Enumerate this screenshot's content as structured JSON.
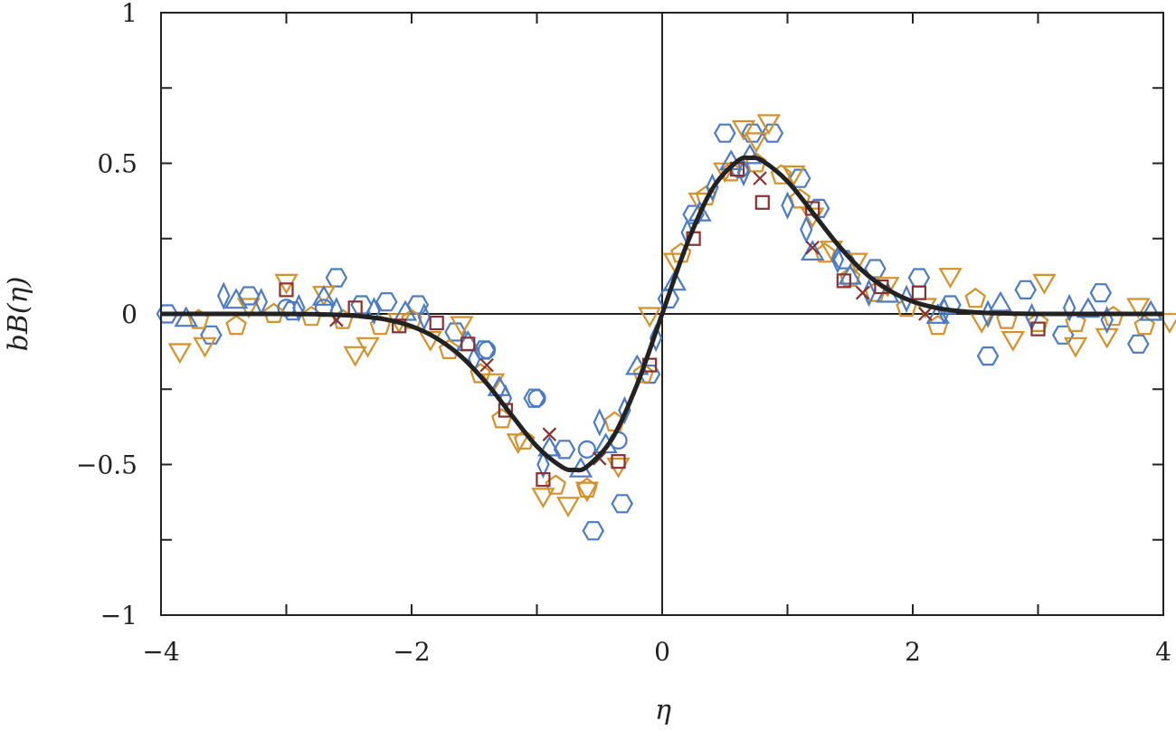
{
  "chart_data": {
    "type": "scatter",
    "title": "",
    "xlabel": "η",
    "ylabel": "bB(η)",
    "xlim": [
      -4,
      4
    ],
    "ylim": [
      -1,
      1
    ],
    "x_ticks": [
      -4,
      -3,
      -2,
      -1,
      0,
      1,
      2,
      3,
      4
    ],
    "x_tick_labels": [
      {
        "value": -4,
        "label": "−4"
      },
      {
        "value": -2,
        "label": "−2"
      },
      {
        "value": 0,
        "label": "0"
      },
      {
        "value": 2,
        "label": "2"
      },
      {
        "value": 4,
        "label": "4"
      }
    ],
    "y_ticks": [
      -1,
      -0.75,
      -0.5,
      -0.25,
      0,
      0.25,
      0.5,
      0.75,
      1
    ],
    "y_tick_labels": [
      {
        "value": -1,
        "label": "−1"
      },
      {
        "value": -0.5,
        "label": "−0.5"
      },
      {
        "value": 0,
        "label": "0"
      },
      {
        "value": 0.5,
        "label": "0.5"
      },
      {
        "value": 1,
        "label": "1"
      }
    ],
    "grid": false,
    "zero_lines": true,
    "colors": {
      "blue": "#4a7bc4",
      "orange": "#d4912a",
      "red": "#8b2f2f",
      "curve": "#222222"
    },
    "series": [
      {
        "name": "hexagon",
        "marker": "hexagon",
        "color": "blue",
        "x": [
          -3.95,
          -3.6,
          -3.3,
          -2.95,
          -2.6,
          -2.4,
          -2.2,
          -1.95,
          -1.65,
          -1.42,
          -1.02,
          -0.78,
          -0.55,
          -0.32,
          -0.1,
          0.05,
          0.25,
          0.5,
          0.72,
          0.88,
          1.1,
          1.25,
          1.45,
          1.7,
          2.05,
          2.3,
          2.6,
          2.9,
          3.2,
          3.5,
          3.8
        ],
        "y": [
          0,
          -0.07,
          0.06,
          0.01,
          0.12,
          0.03,
          0.04,
          0.03,
          -0.06,
          -0.12,
          -0.28,
          -0.45,
          -0.72,
          -0.63,
          -0.2,
          0.05,
          0.33,
          0.6,
          0.6,
          0.6,
          0.45,
          0.35,
          0.18,
          0.15,
          0.12,
          0.03,
          -0.14,
          0.08,
          -0.07,
          0.07,
          -0.1
        ]
      },
      {
        "name": "triangle-down",
        "marker": "triangle-down",
        "color": "orange",
        "x": [
          -3.85,
          -3.65,
          -3.3,
          -3.0,
          -2.7,
          -2.45,
          -2.35,
          -2.1,
          -1.85,
          -1.6,
          -1.35,
          -1.15,
          -0.95,
          -0.75,
          -0.6,
          -0.35,
          -0.1,
          0.1,
          0.3,
          0.5,
          0.65,
          0.75,
          0.85,
          1.05,
          1.2,
          1.35,
          1.55,
          1.8,
          2.1,
          2.3,
          2.55,
          2.8,
          3.05,
          3.3,
          3.55,
          3.8,
          4.05
        ],
        "y": [
          -0.12,
          -0.1,
          0.03,
          0.11,
          0.07,
          -0.13,
          -0.1,
          -0.02,
          -0.08,
          -0.03,
          -0.22,
          -0.42,
          -0.6,
          -0.63,
          -0.58,
          -0.5,
          0,
          0.18,
          0.38,
          0.48,
          0.62,
          0.58,
          0.64,
          0.47,
          0.33,
          0.22,
          0.18,
          0.1,
          0.03,
          0.13,
          -0.02,
          -0.08,
          0.11,
          -0.1,
          -0.07,
          0.03,
          -0.02
        ]
      },
      {
        "name": "pentagon",
        "marker": "pentagon",
        "color": "orange",
        "x": [
          -3.7,
          -3.4,
          -3.1,
          -2.8,
          -2.55,
          -2.25,
          -2.0,
          -1.7,
          -1.45,
          -1.28,
          -1.1,
          -0.85,
          -0.6,
          -0.38,
          -0.15,
          0.15,
          0.35,
          0.55,
          0.75,
          0.95,
          1.1,
          1.3,
          1.5,
          1.7,
          1.95,
          2.2,
          2.5,
          2.75,
          3.0,
          3.3,
          3.6,
          3.85
        ],
        "y": [
          -0.02,
          -0.04,
          0,
          -0.01,
          -0.02,
          -0.04,
          -0.02,
          -0.12,
          -0.2,
          -0.35,
          -0.42,
          -0.57,
          -0.58,
          -0.36,
          -0.2,
          0.2,
          0.39,
          0.47,
          0.5,
          0.46,
          0.38,
          0.2,
          0.12,
          0.07,
          0.02,
          -0.04,
          0.05,
          -0.02,
          -0.03,
          -0.03,
          -0.01,
          -0.04
        ]
      },
      {
        "name": "diamond",
        "marker": "diamond",
        "color": "blue",
        "x": [
          -3.5,
          -3.2,
          -2.9,
          -2.6,
          -2.3,
          -1.9,
          -1.5,
          -1.25,
          -0.95,
          -0.5,
          -0.3,
          -0.05,
          0.2,
          0.4,
          0.65,
          1.0,
          1.15,
          1.4,
          1.65,
          1.95,
          2.25,
          2.6,
          2.95,
          3.25,
          3.55
        ],
        "y": [
          0.06,
          0.04,
          0.02,
          0.01,
          0.01,
          -0.01,
          -0.15,
          -0.28,
          -0.5,
          -0.36,
          -0.32,
          -0.08,
          0.27,
          0.42,
          0.47,
          0.36,
          0.28,
          0.18,
          0.07,
          0.05,
          0.01,
          0,
          -0.01,
          0.02,
          -0.02
        ]
      },
      {
        "name": "triangle-up",
        "marker": "triangle-up",
        "color": "blue",
        "x": [
          -3.8,
          -3.4,
          -2.7,
          -2.05,
          -1.55,
          -1.3,
          -0.9,
          -0.65,
          -0.45,
          -0.2,
          0.1,
          0.3,
          0.55,
          0.7,
          1.2,
          1.5,
          1.8,
          2.2,
          2.7,
          3.4,
          3.9
        ],
        "y": [
          -0.02,
          0.04,
          0.05,
          0,
          -0.1,
          -0.25,
          -0.45,
          -0.52,
          -0.44,
          -0.18,
          0.1,
          0.33,
          0.5,
          0.52,
          0.2,
          0.12,
          0.06,
          -0.01,
          0.03,
          0.01,
          0
        ]
      },
      {
        "name": "circle",
        "marker": "circle",
        "color": "blue",
        "x": [
          -3.0,
          -2.7,
          -1.4,
          -1.0,
          -0.6,
          -0.35,
          0.62
        ],
        "y": [
          0.02,
          0.02,
          -0.12,
          -0.28,
          -0.45,
          -0.42,
          0.48
        ]
      },
      {
        "name": "square",
        "marker": "square",
        "color": "red",
        "x": [
          -3.0,
          -2.45,
          -2.1,
          -1.8,
          -1.55,
          -1.25,
          -0.95,
          -0.35,
          -0.1,
          0.25,
          0.6,
          0.8,
          1.2,
          1.45,
          1.75,
          2.05,
          3.0
        ],
        "y": [
          0.08,
          0.02,
          -0.04,
          -0.03,
          -0.1,
          -0.32,
          -0.55,
          -0.49,
          -0.17,
          0.25,
          0.48,
          0.37,
          0.35,
          0.11,
          0.09,
          0.07,
          -0.05
        ]
      },
      {
        "name": "cross",
        "marker": "cross",
        "color": "red",
        "x": [
          -2.6,
          -1.4,
          -0.9,
          -0.5,
          0.78,
          1.2,
          1.6,
          2.1
        ],
        "y": [
          -0.02,
          -0.17,
          -0.4,
          -0.48,
          0.45,
          0.22,
          0.07,
          0.0
        ]
      }
    ],
    "fit_curve": {
      "name": "fit",
      "color": "curve",
      "x": [
        -4,
        -3.5,
        -3,
        -2.8,
        -2.6,
        -2.4,
        -2.2,
        -2,
        -1.8,
        -1.6,
        -1.4,
        -1.2,
        -1,
        -0.8,
        -0.7,
        -0.6,
        -0.4,
        -0.2,
        0,
        0.2,
        0.4,
        0.6,
        0.7,
        0.8,
        1,
        1.2,
        1.4,
        1.6,
        1.8,
        2,
        2.2,
        2.4,
        2.6,
        2.8,
        3,
        3.5,
        4
      ],
      "y": [
        0,
        0,
        0,
        -0.001,
        -0.003,
        -0.008,
        -0.019,
        -0.041,
        -0.081,
        -0.143,
        -0.231,
        -0.337,
        -0.44,
        -0.508,
        -0.518,
        -0.507,
        -0.415,
        -0.234,
        0,
        0.234,
        0.415,
        0.507,
        0.518,
        0.508,
        0.44,
        0.337,
        0.231,
        0.143,
        0.081,
        0.041,
        0.019,
        0.008,
        0.003,
        0.001,
        0,
        0,
        0
      ]
    }
  }
}
